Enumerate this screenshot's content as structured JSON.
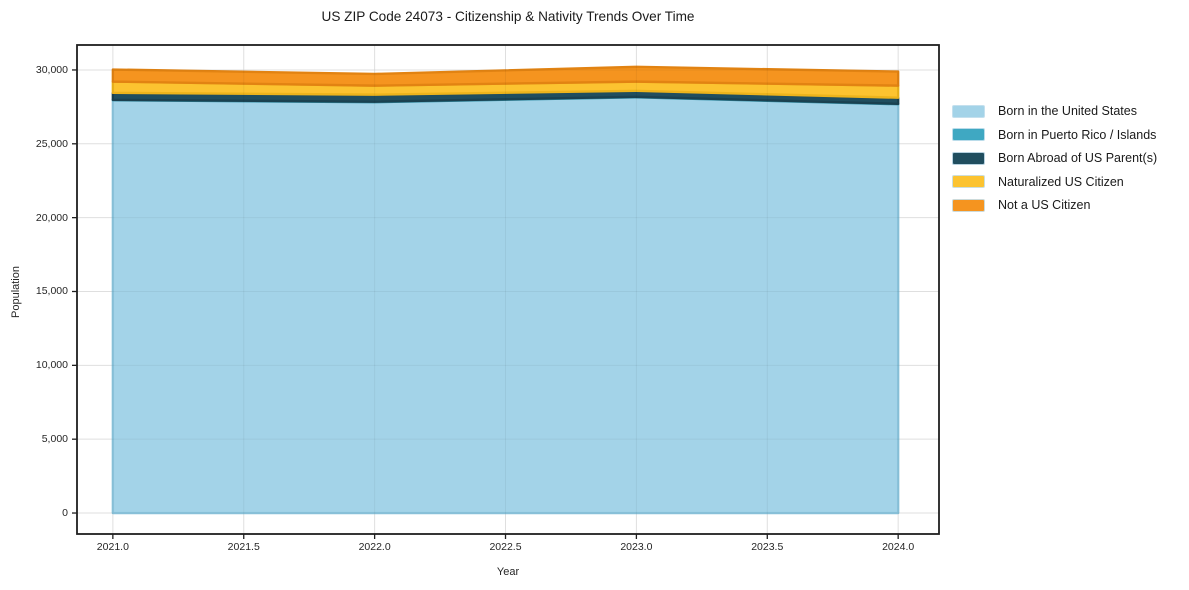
{
  "chart_data": {
    "type": "area",
    "stacked": true,
    "title": "US ZIP Code 24073 - Citizenship & Nativity Trends Over Time",
    "xlabel": "Year",
    "ylabel": "Population",
    "legend_position": "right-outside",
    "grid": true,
    "x": [
      2021,
      2022,
      2023,
      2024
    ],
    "xlim": [
      2020.863,
      2024.156
    ],
    "ylim": [
      -1420,
      31690
    ],
    "xticks": {
      "values": [
        2021.0,
        2021.5,
        2022.0,
        2022.5,
        2023.0,
        2023.5,
        2024.0
      ],
      "labels": [
        "2021.0",
        "2021.5",
        "2022.0",
        "2022.5",
        "2023.0",
        "2023.5",
        "2024.0"
      ]
    },
    "yticks": {
      "values": [
        0,
        5000,
        10000,
        15000,
        20000,
        25000,
        30000
      ],
      "labels": [
        "0",
        "5,000",
        "10,000",
        "15,000",
        "20,000",
        "25,000",
        "30,000"
      ]
    },
    "series": [
      {
        "name": "Born in the United States",
        "color": "#a3d3e8",
        "edge": "#8cc6de",
        "values": [
          27950,
          27820,
          28150,
          27680
        ]
      },
      {
        "name": "Born in Puerto Rico / Islands",
        "color": "#3fa8c2",
        "edge": "#338fa6",
        "values": [
          30,
          30,
          30,
          30
        ]
      },
      {
        "name": "Born Abroad of US Parent(s)",
        "color": "#204e5f",
        "edge": "#1a4150",
        "values": [
          470,
          480,
          410,
          410
        ]
      },
      {
        "name": "Naturalized US Citizen",
        "color": "#fcc330",
        "edge": "#edb41c",
        "values": [
          760,
          610,
          620,
          820
        ]
      },
      {
        "name": "Not a US Citizen",
        "color": "#f5941f",
        "edge": "#e28312",
        "values": [
          820,
          790,
          1000,
          950
        ]
      }
    ],
    "totals": [
      30030,
      29730,
      30210,
      29890
    ]
  }
}
